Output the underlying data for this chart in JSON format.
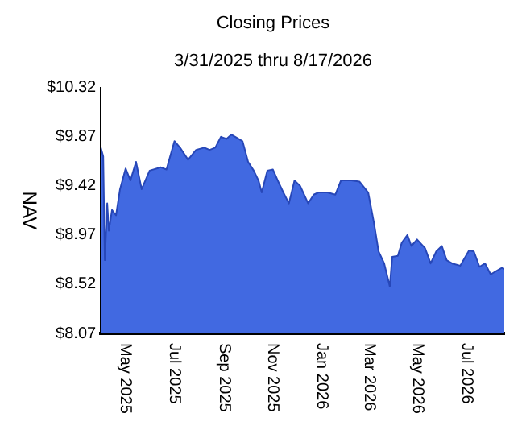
{
  "chart_data": {
    "type": "area",
    "title": "Closing Prices",
    "subtitle": "3/31/2025 thru 8/17/2026",
    "ylabel": "NAV",
    "x": [
      "2025-03-31",
      "2025-04-03",
      "2025-04-05",
      "2025-04-08",
      "2025-04-10",
      "2025-04-14",
      "2025-04-19",
      "2025-04-24",
      "2025-05-01",
      "2025-05-07",
      "2025-05-14",
      "2025-05-21",
      "2025-05-31",
      "2025-06-14",
      "2025-06-21",
      "2025-07-01",
      "2025-07-08",
      "2025-07-18",
      "2025-07-28",
      "2025-08-07",
      "2025-08-14",
      "2025-08-21",
      "2025-08-28",
      "2025-09-04",
      "2025-09-10",
      "2025-09-17",
      "2025-09-24",
      "2025-10-01",
      "2025-10-08",
      "2025-10-14",
      "2025-10-18",
      "2025-10-25",
      "2025-11-01",
      "2025-11-07",
      "2025-11-14",
      "2025-11-21",
      "2025-11-28",
      "2025-12-05",
      "2025-12-15",
      "2025-12-22",
      "2025-12-28",
      "2026-01-08",
      "2026-01-18",
      "2026-01-25",
      "2026-02-07",
      "2026-02-17",
      "2026-02-28",
      "2026-03-07",
      "2026-03-13",
      "2026-03-20",
      "2026-03-27",
      "2026-03-30",
      "2026-04-06",
      "2026-04-11",
      "2026-04-18",
      "2026-04-23",
      "2026-04-30",
      "2026-05-10",
      "2026-05-17",
      "2026-05-24",
      "2026-05-31",
      "2026-06-06",
      "2026-06-13",
      "2026-06-23",
      "2026-07-04",
      "2026-07-10",
      "2026-07-17",
      "2026-07-24",
      "2026-07-31",
      "2026-08-07",
      "2026-08-14",
      "2026-08-17"
    ],
    "series": [
      {
        "color": "#4169e1",
        "values": [
          9.77,
          9.69,
          8.74,
          9.26,
          9.01,
          9.2,
          9.15,
          9.39,
          9.58,
          9.47,
          9.64,
          9.39,
          9.56,
          9.59,
          9.57,
          9.83,
          9.77,
          9.66,
          9.75,
          9.77,
          9.75,
          9.77,
          9.87,
          9.85,
          9.89,
          9.86,
          9.83,
          9.64,
          9.56,
          9.47,
          9.36,
          9.56,
          9.57,
          9.47,
          9.36,
          9.26,
          9.47,
          9.42,
          9.26,
          9.34,
          9.36,
          9.36,
          9.34,
          9.47,
          9.47,
          9.46,
          9.36,
          9.09,
          8.82,
          8.71,
          8.5,
          8.77,
          8.78,
          8.9,
          8.97,
          8.87,
          8.93,
          8.85,
          8.71,
          8.82,
          8.87,
          8.74,
          8.71,
          8.69,
          8.83,
          8.82,
          8.68,
          8.71,
          8.61,
          8.64,
          8.67,
          8.66
        ]
      }
    ],
    "xlim": [
      "2025-03-31",
      "2026-08-17"
    ],
    "xticks": [
      {
        "value": "2025-05-01",
        "label": "May 2025"
      },
      {
        "value": "2025-07-01",
        "label": "Jul 2025"
      },
      {
        "value": "2025-09-01",
        "label": "Sep 2025"
      },
      {
        "value": "2025-11-01",
        "label": "Nov 2025"
      },
      {
        "value": "2026-01-01",
        "label": "Jan 2026"
      },
      {
        "value": "2026-03-01",
        "label": "Mar 2026"
      },
      {
        "value": "2026-05-01",
        "label": "May 2026"
      },
      {
        "value": "2026-07-01",
        "label": "Jul 2026"
      }
    ],
    "ylim": [
      8.07,
      10.32
    ],
    "yticks": [
      {
        "value": 8.07,
        "label": "$8.07"
      },
      {
        "value": 8.52,
        "label": "$8.52"
      },
      {
        "value": 8.97,
        "label": "$8.97"
      },
      {
        "value": 9.42,
        "label": "$9.42"
      },
      {
        "value": 9.87,
        "label": "$9.87"
      },
      {
        "value": 10.32,
        "label": "$10.32"
      }
    ],
    "grid": false,
    "legend": false
  }
}
